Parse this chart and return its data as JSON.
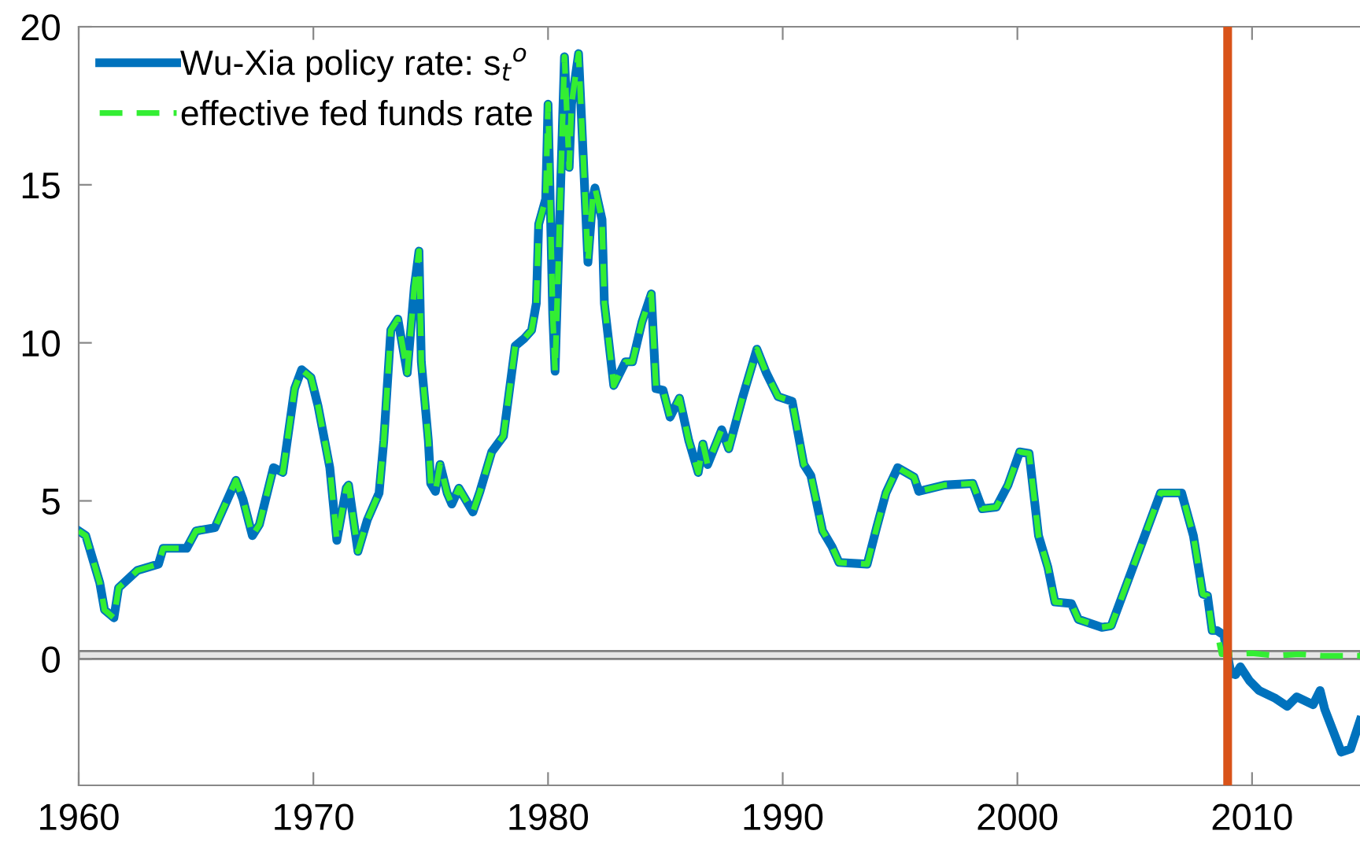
{
  "chart_data": {
    "type": "line",
    "xlim": [
      1960,
      2014.6
    ],
    "xticks": [
      1960,
      1970,
      1980,
      1990,
      2000,
      2010
    ],
    "ylim": [
      -4,
      20
    ],
    "yticks": [
      0,
      5,
      10,
      15,
      20
    ],
    "grid": false,
    "legend": "top left",
    "series": [
      {
        "name": "Wu-Xia policy rate: s$_{t}$$^{o}$",
        "color": "#0072bd",
        "line_style": "solid",
        "x": [
          1960.0,
          1960.3,
          1960.9,
          1961.1,
          1961.5,
          1961.7,
          1962.5,
          1963.4,
          1963.6,
          1964.6,
          1965.0,
          1965.8,
          1966.7,
          1967.0,
          1967.4,
          1967.7,
          1968.3,
          1968.7,
          1969.2,
          1969.5,
          1969.9,
          1970.2,
          1970.7,
          1971.0,
          1971.4,
          1971.5,
          1971.9,
          1972.3,
          1972.8,
          1973.0,
          1973.3,
          1973.6,
          1974.0,
          1974.3,
          1974.5,
          1974.6,
          1974.9,
          1975.0,
          1975.2,
          1975.4,
          1975.7,
          1975.9,
          1976.2,
          1976.8,
          1977.1,
          1977.6,
          1978.1,
          1978.6,
          1979.0,
          1979.3,
          1979.5,
          1979.6,
          1979.9,
          1980.0,
          1980.2,
          1980.3,
          1980.7,
          1980.9,
          1981.0,
          1981.3,
          1981.5,
          1981.7,
          1981.9,
          1982.0,
          1982.3,
          1982.4,
          1982.8,
          1983.3,
          1983.6,
          1984.0,
          1984.4,
          1984.6,
          1984.9,
          1985.2,
          1985.6,
          1986.0,
          1986.4,
          1986.6,
          1986.8,
          1987.4,
          1987.7,
          1988.3,
          1988.9,
          1989.3,
          1989.8,
          1990.4,
          1990.9,
          1991.2,
          1991.7,
          1992.1,
          1992.4,
          1993.6,
          1994.0,
          1994.4,
          1994.9,
          1995.6,
          1995.8,
          1996.9,
          1998.1,
          1998.5,
          1999.1,
          1999.6,
          2000.1,
          2000.5,
          2000.9,
          2001.3,
          2001.6,
          2002.3,
          2002.6,
          2003.6,
          2004.0,
          2006.1,
          2007.0,
          2007.5,
          2007.9,
          2008.1,
          2008.3,
          2008.5,
          2008.8,
          2009.1,
          2009.3,
          2009.5,
          2009.9,
          2010.3,
          2011.0,
          2011.5,
          2011.9,
          2012.6,
          2012.9,
          2013.1,
          2013.8,
          2014.2,
          2014.6
        ],
        "values": [
          4.05,
          3.9,
          2.4,
          1.55,
          1.3,
          2.25,
          2.8,
          3.0,
          3.5,
          3.5,
          4.05,
          4.15,
          5.65,
          5.05,
          3.9,
          4.25,
          6.05,
          5.9,
          8.55,
          9.15,
          8.9,
          8.0,
          6.05,
          3.75,
          5.4,
          5.5,
          3.4,
          4.4,
          5.25,
          6.9,
          10.4,
          10.75,
          9.05,
          11.75,
          12.9,
          9.4,
          6.9,
          5.55,
          5.3,
          6.15,
          5.25,
          4.9,
          5.4,
          4.65,
          5.3,
          6.55,
          7.05,
          9.9,
          10.15,
          10.4,
          11.25,
          13.75,
          14.55,
          17.55,
          10.9,
          9.1,
          19.05,
          15.55,
          17.55,
          19.15,
          15.9,
          12.55,
          14.55,
          14.9,
          13.9,
          11.25,
          8.65,
          9.4,
          9.4,
          10.65,
          11.55,
          8.55,
          8.5,
          7.65,
          8.25,
          6.9,
          5.9,
          6.8,
          6.15,
          7.25,
          6.65,
          8.3,
          9.8,
          9.05,
          8.3,
          8.15,
          6.15,
          5.8,
          4.05,
          3.55,
          3.05,
          3.0,
          4.15,
          5.25,
          6.05,
          5.75,
          5.3,
          5.5,
          5.55,
          4.75,
          4.8,
          5.5,
          6.55,
          6.5,
          3.9,
          2.9,
          1.8,
          1.75,
          1.25,
          1.0,
          1.05,
          5.25,
          5.25,
          3.9,
          2.05,
          2.0,
          0.9,
          0.9,
          0.75,
          -0.45,
          -0.5,
          -0.25,
          -0.7,
          -1.0,
          -1.25,
          -1.5,
          -1.2,
          -1.45,
          -1.0,
          -1.6,
          -2.95,
          -2.85,
          -1.95
        ]
      },
      {
        "name": "effective fed funds rate",
        "color": "#33ee33",
        "line_style": "dashed",
        "x": [
          1960.0,
          1960.3,
          1960.9,
          1961.1,
          1961.5,
          1961.7,
          1962.5,
          1963.4,
          1963.6,
          1964.6,
          1965.0,
          1965.8,
          1966.7,
          1967.0,
          1967.4,
          1967.7,
          1968.3,
          1968.7,
          1969.2,
          1969.5,
          1969.9,
          1970.2,
          1970.7,
          1971.0,
          1971.4,
          1971.5,
          1971.9,
          1972.3,
          1972.8,
          1973.0,
          1973.3,
          1973.6,
          1974.0,
          1974.3,
          1974.5,
          1974.6,
          1974.9,
          1975.0,
          1975.2,
          1975.4,
          1975.7,
          1975.9,
          1976.2,
          1976.8,
          1977.1,
          1977.6,
          1978.1,
          1978.6,
          1979.0,
          1979.3,
          1979.5,
          1979.6,
          1979.9,
          1980.0,
          1980.2,
          1980.3,
          1980.7,
          1980.9,
          1981.0,
          1981.3,
          1981.5,
          1981.7,
          1981.9,
          1982.0,
          1982.3,
          1982.4,
          1982.8,
          1983.3,
          1983.6,
          1984.0,
          1984.4,
          1984.6,
          1984.9,
          1985.2,
          1985.6,
          1986.0,
          1986.4,
          1986.6,
          1986.8,
          1987.4,
          1987.7,
          1988.3,
          1988.9,
          1989.3,
          1989.8,
          1990.4,
          1990.9,
          1991.2,
          1991.7,
          1992.1,
          1992.4,
          1993.6,
          1994.0,
          1994.4,
          1994.9,
          1995.6,
          1995.8,
          1996.9,
          1998.1,
          1998.5,
          1999.1,
          1999.6,
          2000.1,
          2000.5,
          2000.9,
          2001.3,
          2001.6,
          2002.3,
          2002.6,
          2003.6,
          2004.0,
          2006.1,
          2007.0,
          2007.5,
          2007.9,
          2008.1,
          2008.3,
          2008.5,
          2008.7,
          2009.0,
          2010.0,
          2011.0,
          2012.0,
          2013.0,
          2014.6
        ],
        "values": [
          4.05,
          3.9,
          2.4,
          1.55,
          1.3,
          2.25,
          2.8,
          3.0,
          3.5,
          3.5,
          4.05,
          4.15,
          5.65,
          5.05,
          3.9,
          4.25,
          6.05,
          5.9,
          8.55,
          9.15,
          8.9,
          8.0,
          6.05,
          3.75,
          5.4,
          5.5,
          3.4,
          4.4,
          5.25,
          6.9,
          10.4,
          10.75,
          9.05,
          11.75,
          12.9,
          9.4,
          6.9,
          5.55,
          5.3,
          6.15,
          5.25,
          4.9,
          5.4,
          4.65,
          5.3,
          6.55,
          7.05,
          9.9,
          10.15,
          10.4,
          11.25,
          13.75,
          14.55,
          17.55,
          10.9,
          9.1,
          19.05,
          15.55,
          17.55,
          19.15,
          15.9,
          12.55,
          14.55,
          14.9,
          13.9,
          11.25,
          8.65,
          9.4,
          9.4,
          10.65,
          11.55,
          8.55,
          8.5,
          7.65,
          8.25,
          6.9,
          5.9,
          6.8,
          6.15,
          7.25,
          6.65,
          8.3,
          9.8,
          9.05,
          8.3,
          8.15,
          6.15,
          5.8,
          4.05,
          3.55,
          3.05,
          3.0,
          4.15,
          5.25,
          6.05,
          5.75,
          5.3,
          5.5,
          5.55,
          4.75,
          4.8,
          5.5,
          6.55,
          6.5,
          3.9,
          2.9,
          1.8,
          1.75,
          1.25,
          1.0,
          1.05,
          5.25,
          5.25,
          3.9,
          2.05,
          2.0,
          0.9,
          0.9,
          0.15,
          0.15,
          0.18,
          0.1,
          0.15,
          0.1,
          0.1
        ]
      }
    ],
    "ref_lines": [
      {
        "axis": "x",
        "value": 2008.96,
        "color": "#d95319",
        "line_style": "solid"
      }
    ],
    "bands": [
      {
        "axis": "y",
        "from": 0,
        "to": 0.25,
        "color": "#e6e6e6"
      }
    ]
  }
}
